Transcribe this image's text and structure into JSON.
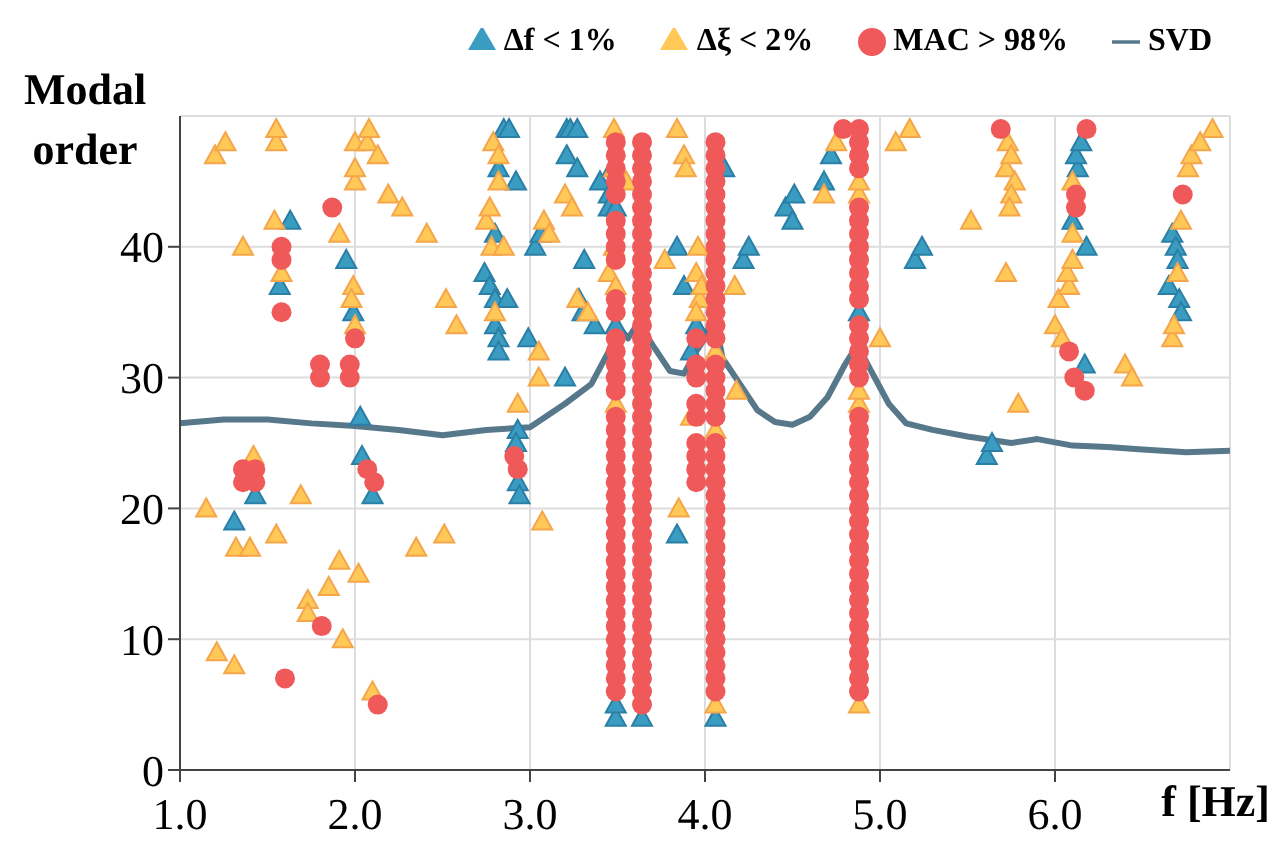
{
  "chart_data": {
    "type": "scatter",
    "xlabel": "f [Hz]",
    "ylabel": "Modal order",
    "xlim": [
      1.0,
      7.0
    ],
    "ylim": [
      0,
      50
    ],
    "xticks": [
      {
        "value": 1,
        "label": "1.0"
      },
      {
        "value": 2,
        "label": "2.0"
      },
      {
        "value": 3,
        "label": "3.0"
      },
      {
        "value": 4,
        "label": "4.0"
      },
      {
        "value": 5,
        "label": "5.0"
      },
      {
        "value": 6,
        "label": "6.0"
      }
    ],
    "yticks": [
      0,
      10,
      20,
      30,
      40
    ],
    "grid": true,
    "legend": "top",
    "series": [
      {
        "name": "Δf < 1%",
        "marker": "triangle",
        "color": "#3a9cc0",
        "x": [
          1.31,
          1.43,
          1.57,
          1.63,
          1.95,
          1.99,
          2.03,
          2.04,
          2.1,
          2.74,
          2.77,
          2.8,
          2.87,
          2.8,
          2.82,
          2.82,
          2.8,
          2.82,
          2.85,
          2.88,
          2.92,
          2.99,
          2.93,
          2.92,
          2.93,
          2.94,
          3.03,
          3.06,
          3.2,
          3.21,
          3.23,
          3.27,
          3.21,
          3.27,
          3.31,
          3.28,
          3.3,
          3.37,
          3.4,
          3.45,
          3.45,
          3.47,
          3.49,
          3.49,
          3.49,
          3.49,
          3.64,
          4.06,
          3.84,
          3.84,
          3.88,
          3.92,
          3.95,
          4.11,
          4.22,
          4.25,
          4.46,
          4.5,
          4.51,
          4.68,
          4.72,
          4.88,
          5.2,
          5.24,
          5.61,
          5.64,
          6.1,
          6.13,
          6.12,
          6.15,
          6.18,
          6.17,
          6.65,
          6.67,
          6.69,
          6.7,
          6.71,
          6.72
        ],
        "values": [
          19,
          21,
          37,
          42,
          39,
          35,
          27,
          24,
          21,
          38,
          37,
          36,
          36,
          34,
          33,
          32,
          41,
          46,
          49,
          49,
          45,
          33,
          26,
          25,
          22,
          21,
          40,
          41,
          30,
          49,
          49,
          49,
          47,
          46,
          39,
          36,
          35,
          34,
          45,
          44,
          43,
          46,
          4,
          5,
          34,
          43,
          4,
          4,
          18,
          40,
          37,
          32,
          34,
          46,
          39,
          40,
          43,
          42,
          44,
          45,
          47,
          35,
          39,
          40,
          24,
          25,
          42,
          46,
          47,
          48,
          40,
          31,
          37,
          41,
          40,
          39,
          36,
          35
        ]
      },
      {
        "name": "Δξ < 2%",
        "marker": "triangle",
        "color": "#ffc857",
        "x": [
          1.15,
          1.2,
          1.26,
          1.21,
          1.31,
          1.32,
          1.4,
          1.36,
          1.42,
          1.54,
          1.55,
          1.55,
          1.55,
          1.58,
          1.69,
          1.73,
          1.73,
          1.85,
          1.91,
          1.91,
          1.93,
          1.99,
          1.98,
          2.0,
          2.0,
          2.0,
          2.0,
          2.07,
          2.08,
          2.02,
          2.13,
          2.19,
          2.27,
          2.41,
          2.35,
          2.51,
          2.52,
          2.58,
          2.1,
          2.75,
          2.77,
          2.78,
          2.8,
          2.79,
          2.82,
          2.82,
          2.85,
          2.93,
          3.05,
          3.05,
          3.07,
          3.08,
          3.11,
          3.2,
          3.24,
          3.27,
          3.33,
          3.45,
          3.48,
          3.48,
          3.48,
          3.49,
          3.49,
          3.55,
          3.77,
          3.84,
          3.88,
          3.89,
          3.85,
          3.92,
          3.96,
          3.95,
          3.97,
          3.95,
          3.98,
          4.06,
          4.06,
          4.06,
          4.17,
          4.18,
          4.68,
          4.75,
          4.88,
          4.88,
          4.88,
          4.88,
          4.88,
          5.09,
          5.17,
          5.0,
          5.52,
          5.73,
          5.72,
          5.77,
          5.75,
          5.75,
          5.74,
          5.72,
          5.79,
          6.0,
          6.02,
          6.04,
          6.08,
          6.07,
          6.1,
          6.1,
          6.1,
          6.4,
          6.44,
          6.67,
          6.68,
          6.7,
          6.72,
          6.76,
          6.78,
          6.83,
          6.9
        ],
        "values": [
          20,
          47,
          48,
          9,
          8,
          17,
          17,
          40,
          24,
          42,
          48,
          49,
          18,
          38,
          21,
          13,
          12,
          14,
          16,
          41,
          10,
          37,
          36,
          34,
          45,
          46,
          48,
          48,
          49,
          15,
          47,
          44,
          43,
          41,
          17,
          18,
          36,
          34,
          6,
          42,
          43,
          40,
          35,
          48,
          47,
          45,
          40,
          28,
          32,
          30,
          19,
          42,
          41,
          44,
          43,
          36,
          35,
          38,
          40,
          49,
          46,
          28,
          37,
          45,
          39,
          49,
          47,
          46,
          20,
          27,
          40,
          38,
          36,
          35,
          37,
          5,
          26,
          32,
          37,
          29,
          44,
          48,
          5,
          28,
          29,
          44,
          45,
          48,
          49,
          33,
          42,
          48,
          46,
          45,
          47,
          44,
          43,
          38,
          28,
          34,
          36,
          33,
          37,
          38,
          39,
          41,
          45,
          31,
          30,
          33,
          34,
          38,
          42,
          46,
          47,
          48,
          49
        ]
      },
      {
        "name": "MAC > 98%",
        "marker": "circle",
        "color": "#f0595a",
        "x": [
          1.36,
          1.36,
          1.43,
          1.43,
          1.58,
          1.58,
          1.58,
          1.6,
          1.87,
          1.8,
          1.8,
          1.81,
          1.97,
          1.97,
          2.0,
          2.07,
          2.11,
          2.13,
          2.91,
          2.93,
          5.69,
          6.18,
          6.12,
          6.12,
          6.08,
          6.11,
          6.17,
          6.73,
          4.79,
          3.49,
          3.49,
          3.49,
          3.49,
          3.49,
          3.49,
          3.49,
          3.49,
          3.49,
          3.49,
          3.49,
          3.49,
          3.49,
          3.49,
          3.49,
          3.49,
          3.49,
          3.49,
          3.49,
          3.49,
          3.49,
          3.49,
          3.49,
          3.49,
          3.49,
          3.49,
          3.49,
          3.49,
          3.49,
          3.49,
          3.49,
          3.49,
          3.49,
          3.49,
          3.49,
          3.49,
          3.49,
          3.49,
          3.64,
          3.64,
          3.64,
          3.64,
          3.64,
          3.64,
          3.64,
          3.64,
          3.64,
          3.64,
          3.64,
          3.64,
          3.64,
          3.64,
          3.64,
          3.64,
          3.64,
          3.64,
          3.64,
          3.64,
          3.64,
          3.64,
          3.64,
          3.64,
          3.64,
          3.64,
          3.64,
          3.64,
          3.64,
          3.64,
          3.64,
          3.64,
          3.64,
          3.64,
          3.64,
          3.64,
          3.64,
          3.64,
          3.64,
          3.64,
          3.64,
          3.64,
          3.64,
          3.64,
          3.95,
          3.95,
          3.95,
          3.95,
          3.95,
          3.95,
          3.95,
          3.95,
          3.95,
          4.06,
          4.06,
          4.06,
          4.06,
          4.06,
          4.06,
          4.06,
          4.06,
          4.06,
          4.06,
          4.06,
          4.06,
          4.06,
          4.06,
          4.06,
          4.06,
          4.06,
          4.06,
          4.06,
          4.06,
          4.06,
          4.06,
          4.06,
          4.06,
          4.06,
          4.06,
          4.06,
          4.06,
          4.06,
          4.06,
          4.06,
          4.06,
          4.06,
          4.06,
          4.06,
          4.06,
          4.06,
          4.06,
          4.06,
          4.06,
          4.06,
          4.88,
          4.88,
          4.88,
          4.88,
          4.88,
          4.88,
          4.88,
          4.88,
          4.88,
          4.88,
          4.88,
          4.88,
          4.88,
          4.88,
          4.88,
          4.88,
          4.88,
          4.88,
          4.88,
          4.88,
          4.88,
          4.88,
          4.88,
          4.88,
          4.88,
          4.88,
          4.88,
          4.88,
          4.88,
          4.88,
          4.88,
          4.88,
          4.88,
          4.88,
          4.88,
          4.88,
          4.88,
          4.88,
          4.88
        ],
        "values": [
          23,
          22,
          23,
          22,
          40,
          39,
          35,
          7,
          43,
          31,
          30,
          11,
          31,
          30,
          33,
          23,
          22,
          5,
          24,
          23,
          49,
          49,
          44,
          43,
          32,
          30,
          29,
          44,
          49,
          6,
          7,
          8,
          9,
          10,
          11,
          12,
          13,
          14,
          15,
          16,
          17,
          18,
          19,
          20,
          21,
          22,
          23,
          24,
          25,
          26,
          27,
          29,
          30,
          31,
          32,
          33,
          35,
          36,
          39,
          40,
          41,
          42,
          44,
          45,
          46,
          47,
          48,
          5,
          6,
          7,
          8,
          9,
          10,
          11,
          12,
          13,
          14,
          15,
          16,
          17,
          18,
          19,
          20,
          21,
          22,
          23,
          24,
          25,
          26,
          27,
          28,
          29,
          30,
          31,
          32,
          33,
          34,
          35,
          36,
          37,
          38,
          39,
          40,
          41,
          42,
          43,
          44,
          45,
          46,
          47,
          48,
          22,
          23,
          24,
          25,
          27,
          28,
          30,
          31,
          33,
          6,
          7,
          8,
          9,
          10,
          11,
          12,
          13,
          14,
          15,
          16,
          17,
          18,
          19,
          20,
          21,
          22,
          23,
          24,
          25,
          27,
          28,
          29,
          30,
          31,
          33,
          34,
          35,
          36,
          37,
          38,
          39,
          40,
          41,
          42,
          43,
          44,
          45,
          46,
          47,
          48,
          6,
          7,
          8,
          9,
          10,
          11,
          12,
          13,
          14,
          15,
          16,
          17,
          18,
          19,
          20,
          21,
          22,
          23,
          24,
          25,
          26,
          27,
          30,
          31,
          32,
          33,
          34,
          36,
          37,
          38,
          39,
          40,
          41,
          42,
          43,
          46,
          47,
          48,
          49
        ]
      },
      {
        "name": "SVD",
        "type": "line",
        "color": "#56788a",
        "x": [
          1.0,
          1.25,
          1.5,
          1.75,
          2.0,
          2.25,
          2.5,
          2.75,
          3.0,
          3.2,
          3.35,
          3.45,
          3.5,
          3.56,
          3.62,
          3.7,
          3.8,
          3.88,
          3.95,
          4.0,
          4.05,
          4.1,
          4.2,
          4.3,
          4.4,
          4.5,
          4.6,
          4.7,
          4.8,
          4.87,
          4.95,
          5.05,
          5.15,
          5.3,
          5.5,
          5.75,
          5.9,
          6.1,
          6.3,
          6.5,
          6.75,
          7.0
        ],
        "values": [
          26.5,
          26.8,
          26.8,
          26.5,
          26.3,
          26,
          25.6,
          26,
          26.2,
          28,
          29.5,
          32,
          34,
          33,
          34.2,
          32.5,
          30.5,
          30.3,
          32,
          33,
          35,
          31.5,
          29.5,
          27.5,
          26.6,
          26.4,
          27,
          28.5,
          31,
          32.5,
          30.5,
          28,
          26.5,
          26,
          25.5,
          25,
          25.3,
          24.8,
          24.7,
          24.5,
          24.3,
          24.4
        ]
      }
    ]
  }
}
